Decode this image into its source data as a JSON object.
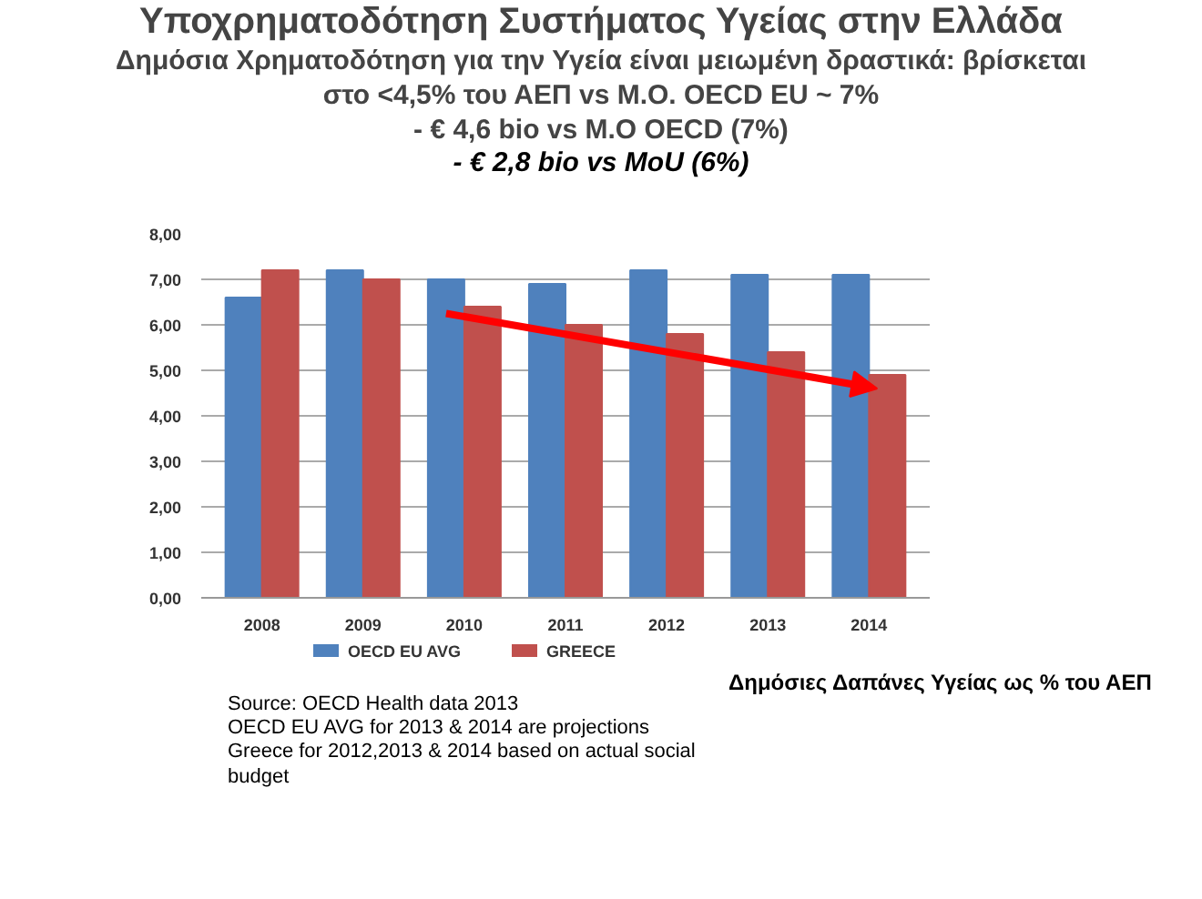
{
  "chart_data": {
    "type": "bar",
    "title": "Υποχρηματοδότηση Συστήματος Υγείας στην Ελλάδα",
    "subtitle": "Δημόσια Χρηματοδότηση για την Υγεία είναι μειωμένη δραστικά: βρίσκεται\nστο <4,5% του ΑΕΠ vs M.O. OECD EU ~ 7%\n- € 4,6 bio vs M.O OECD (7%)\n- € 2,8 bio vs MoU (6%)",
    "categories": [
      "2008",
      "2009",
      "2010",
      "2011",
      "2012",
      "2013",
      "2014"
    ],
    "series": [
      {
        "name": "OECD EU AVG",
        "color": "#4f81bd",
        "values": [
          6.6,
          7.2,
          7.0,
          6.9,
          7.2,
          7.1,
          7.1
        ]
      },
      {
        "name": "GREECE",
        "color": "#c0504d",
        "values": [
          7.2,
          7.0,
          6.4,
          6.0,
          5.8,
          5.4,
          4.9
        ]
      }
    ],
    "ylim": [
      0,
      8
    ],
    "yticks": [
      {
        "value": 0,
        "label": "0,00"
      },
      {
        "value": 1,
        "label": "1,00"
      },
      {
        "value": 2,
        "label": "2,00"
      },
      {
        "value": 3,
        "label": "3,00"
      },
      {
        "value": 4,
        "label": "4,00"
      },
      {
        "value": 5,
        "label": "5,00"
      },
      {
        "value": 6,
        "label": "6,00"
      },
      {
        "value": 7,
        "label": "7,00"
      },
      {
        "value": 8,
        "label": "8,00"
      }
    ],
    "grid": "y",
    "legend": "bottom",
    "annotations": [
      "Source: OECD Health data 2013",
      "OECD EU AVG for 2013 & 2014 are projections",
      "Greece for 2012,2013 & 2014 based on actual social budget",
      "Δημόσιες Δαπάνες Υγείας ως % του ΑΕΠ"
    ]
  }
}
